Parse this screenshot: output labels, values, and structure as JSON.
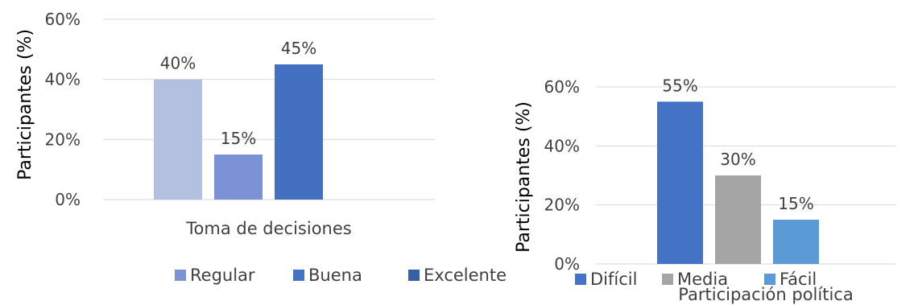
{
  "chart_data": [
    {
      "type": "bar",
      "xlabel": "Toma de decisiones",
      "ylabel": "Participantes (%)",
      "ylim": [
        0,
        60
      ],
      "yticks": [
        "0%",
        "20%",
        "40%",
        "60%"
      ],
      "grid": true,
      "legend_position": "bottom",
      "series": [
        {
          "name": "Regular",
          "value": 40,
          "label": "40%",
          "color": "#b4c0e0",
          "legend_color": "#7b93d4"
        },
        {
          "name": "Buena",
          "value": 15,
          "label": "15%",
          "color": "#7b93d4",
          "legend_color": "#4472c4"
        },
        {
          "name": "Excelente",
          "value": 45,
          "label": "45%",
          "color": "#4470c2",
          "legend_color": "#3560a8"
        }
      ]
    },
    {
      "type": "bar",
      "xlabel": "Participación política",
      "ylabel": "Participantes (%)",
      "ylim": [
        0,
        60
      ],
      "yticks": [
        "0%",
        "20%",
        "40%",
        "60%"
      ],
      "grid": true,
      "legend_position": "bottom",
      "series": [
        {
          "name": "Difícil",
          "value": 55,
          "label": "55%",
          "color": "#4472c4",
          "legend_color": "#4472c4"
        },
        {
          "name": "Media",
          "value": 30,
          "label": "30%",
          "color": "#a5a5a5",
          "legend_color": "#a5a5a5"
        },
        {
          "name": "Fácil",
          "value": 15,
          "label": "15%",
          "color": "#5b9bd5",
          "legend_color": "#5b9bd5"
        }
      ]
    }
  ]
}
